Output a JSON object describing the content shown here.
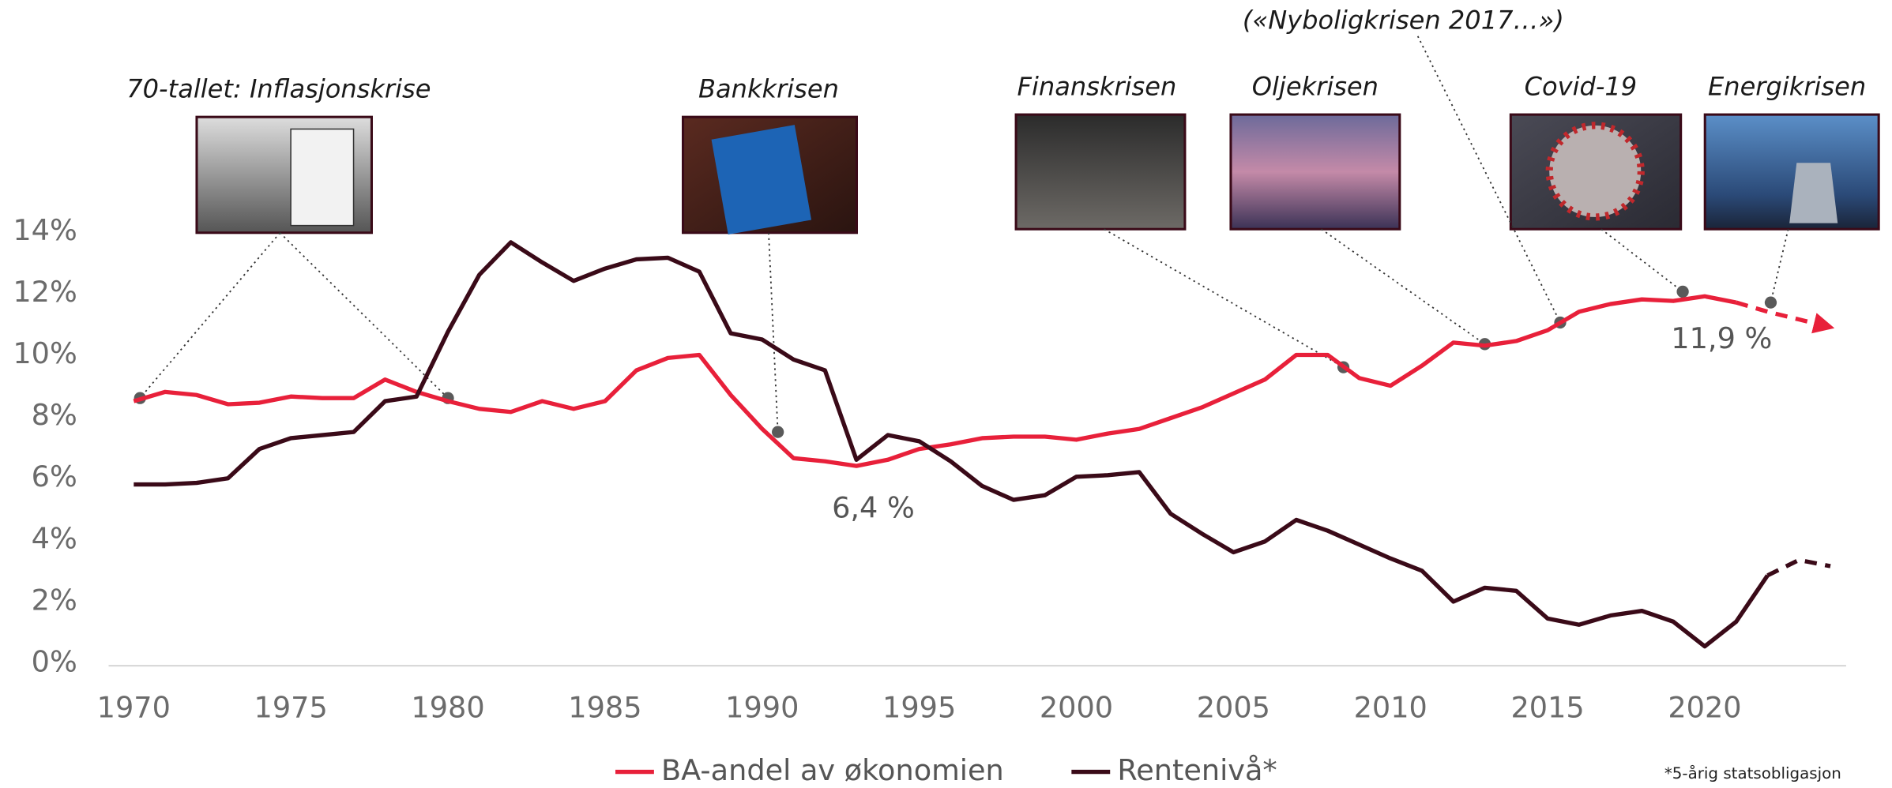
{
  "chart_data": {
    "type": "line",
    "x": [
      1970,
      1971,
      1972,
      1973,
      1974,
      1975,
      1976,
      1977,
      1978,
      1979,
      1980,
      1981,
      1982,
      1983,
      1984,
      1985,
      1986,
      1987,
      1988,
      1989,
      1990,
      1991,
      1992,
      1993,
      1994,
      1995,
      1996,
      1997,
      1998,
      1999,
      2000,
      2001,
      2002,
      2003,
      2004,
      2005,
      2006,
      2007,
      2008,
      2009,
      2010,
      2011,
      2012,
      2013,
      2014,
      2015,
      2016,
      2017,
      2018,
      2019,
      2020,
      2021,
      2022,
      2023,
      2024
    ],
    "series": [
      {
        "name": "BA-andel av økonomien",
        "color": "#e8203a",
        "dashed_from": 2021,
        "values": [
          8.5,
          8.8,
          8.7,
          8.4,
          8.45,
          8.65,
          8.6,
          8.6,
          9.2,
          8.8,
          8.5,
          8.25,
          8.15,
          8.5,
          8.25,
          8.5,
          9.5,
          9.9,
          10.0,
          8.7,
          7.6,
          6.65,
          6.55,
          6.4,
          6.6,
          6.95,
          7.1,
          7.3,
          7.35,
          7.35,
          7.25,
          7.45,
          7.6,
          7.95,
          8.3,
          8.75,
          9.2,
          10.0,
          10.0,
          9.25,
          9.0,
          9.65,
          10.4,
          10.3,
          10.45,
          10.8,
          11.4,
          11.65,
          11.8,
          11.75,
          11.9,
          11.7,
          11.4,
          11.15,
          10.9
        ],
        "value_labels": [
          null,
          null,
          null,
          null,
          null,
          null,
          null,
          null,
          null,
          null,
          null,
          null,
          null,
          null,
          null,
          null,
          null,
          null,
          null,
          null,
          null,
          null,
          null,
          "6,4 %",
          null,
          null,
          null,
          null,
          null,
          null,
          null,
          null,
          null,
          null,
          null,
          null,
          null,
          null,
          null,
          null,
          null,
          null,
          null,
          null,
          null,
          null,
          null,
          null,
          null,
          null,
          "11,9 %",
          null,
          null,
          null,
          null
        ]
      },
      {
        "name": "Rentenivå*",
        "color": "#3a0a18",
        "dashed_from": 2022,
        "values": [
          5.8,
          5.8,
          5.85,
          6.0,
          6.95,
          7.3,
          7.4,
          7.5,
          8.5,
          8.65,
          10.75,
          12.6,
          13.65,
          13.0,
          12.4,
          12.8,
          13.1,
          13.15,
          12.7,
          10.7,
          10.5,
          9.85,
          9.5,
          6.6,
          7.4,
          7.2,
          6.55,
          5.75,
          5.3,
          5.45,
          6.05,
          6.1,
          6.2,
          4.85,
          4.2,
          3.6,
          3.95,
          4.65,
          4.3,
          3.85,
          3.4,
          3.0,
          2.0,
          2.45,
          2.35,
          1.45,
          1.25,
          1.55,
          1.7,
          1.35,
          0.55,
          1.35,
          2.85,
          3.35,
          3.15
        ]
      }
    ],
    "xlim": [
      1969.2,
      2024.5
    ],
    "xticks": [
      1970,
      1975,
      1980,
      1985,
      1990,
      1995,
      2000,
      2005,
      2010,
      2015,
      2020
    ],
    "ylim": [
      0,
      14
    ],
    "yticks": [
      {
        "value": 0,
        "label": "0%"
      },
      {
        "value": 2,
        "label": "2%"
      },
      {
        "value": 4,
        "label": "4%"
      },
      {
        "value": 6,
        "label": "6%"
      },
      {
        "value": 8,
        "label": "8%"
      },
      {
        "value": 10,
        "label": "10%"
      },
      {
        "value": 12,
        "label": "12%"
      },
      {
        "value": 14,
        "label": "14%"
      }
    ],
    "annotations": [
      {
        "text": "70-tallet: Inflasjonskrise",
        "x": [
          1970.2,
          1980
        ],
        "y": [
          8.6,
          8.6
        ]
      },
      {
        "text": "Bankkrisen",
        "x": [
          1990.5
        ],
        "y": [
          7.5
        ]
      },
      {
        "text": "Finanskrisen",
        "x": [
          2008.5
        ],
        "y": [
          9.6
        ]
      },
      {
        "text": "Oljekrisen",
        "x": [
          2013
        ],
        "y": [
          10.35
        ]
      },
      {
        "text": "(«Nyboligkrisen 2017…»)",
        "x": [
          2015.4
        ],
        "y": [
          11.05
        ]
      },
      {
        "text": "Covid-19",
        "x": [
          2019.3
        ],
        "y": [
          12.05
        ]
      },
      {
        "text": "Energikrisen",
        "x": [
          2022.1
        ],
        "y": [
          11.7
        ]
      }
    ],
    "footnote": "*5-årig statsobligasjon"
  }
}
